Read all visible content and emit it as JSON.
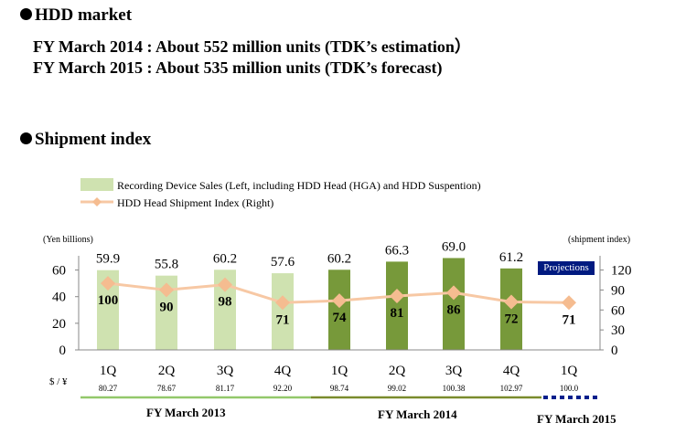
{
  "hdd_market": {
    "heading": "HDD market",
    "line1": "FY March 2014 : About 552 million units (TDK’s estimation）",
    "line2": "FY March 2015 : About 535 million units (TDK’s forecast)"
  },
  "shipment": {
    "heading": "Shipment index"
  },
  "chart_data": {
    "type": "bar",
    "categories": [
      "1Q",
      "2Q",
      "3Q",
      "4Q",
      "1Q",
      "2Q",
      "3Q",
      "4Q",
      "1Q"
    ],
    "series": [
      {
        "name": "Recording Device Sales (Left, including HDD Head (HGA) and HDD Suspention)",
        "type": "bar",
        "axis": "left",
        "values": [
          59.9,
          55.8,
          60.2,
          57.6,
          60.2,
          66.3,
          69.0,
          61.2,
          null
        ],
        "colors": [
          "#cfe2b0",
          "#cfe2b0",
          "#cfe2b0",
          "#cfe2b0",
          "#77993a",
          "#77993a",
          "#77993a",
          "#77993a",
          ""
        ]
      },
      {
        "name": "HDD Head Shipment Index (Right)",
        "type": "line",
        "axis": "right",
        "values": [
          100,
          90,
          98,
          71,
          74,
          81,
          86,
          72,
          71
        ],
        "color": "#f7c8a4",
        "marker": "diamond",
        "marker_color": "#f5bc90"
      }
    ],
    "left_axis": {
      "title": "(Yen billions)",
      "ylim": [
        0,
        70
      ],
      "ticks": [
        0,
        20,
        40,
        60
      ]
    },
    "right_axis": {
      "title": "(shipment index)",
      "ylim": [
        0,
        140
      ],
      "ticks": [
        0,
        30,
        60,
        90,
        120
      ]
    },
    "exchange_rate": {
      "label": "$ / ¥",
      "values": [
        "80.27",
        "78.67",
        "81.17",
        "92.20",
        "98.74",
        "99.02",
        "100.38",
        "102.97",
        "100.0"
      ]
    },
    "fiscal_years": [
      {
        "label": "FY March 2013",
        "color": "#92c86a",
        "style": "solid"
      },
      {
        "label": "FY March 2014",
        "color": "#7a8b2c",
        "style": "solid"
      },
      {
        "label": "FY March 2015",
        "color": "#001f8c",
        "style": "dashed"
      }
    ],
    "projection_badge": "Projections",
    "legend_placement": "top-left",
    "grid": false
  }
}
